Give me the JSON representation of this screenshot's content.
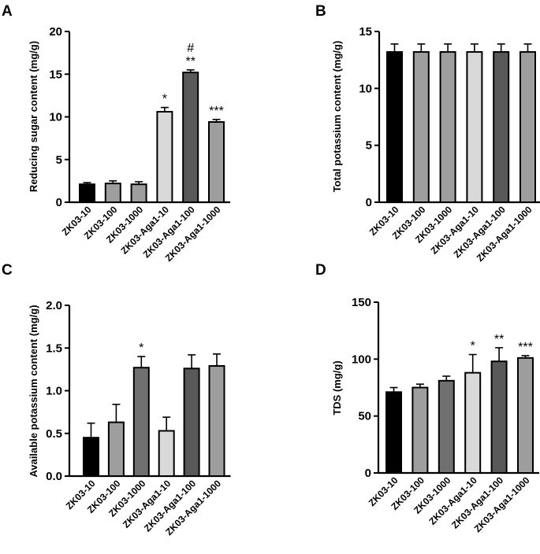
{
  "chart_data": [
    {
      "panel": "A",
      "type": "bar",
      "ylabel": "Reducing sugar content (mg/g)",
      "ylim": [
        0,
        20
      ],
      "yticks": [
        0,
        5,
        10,
        15,
        20
      ],
      "categories": [
        "ZK03-10",
        "ZK03-100",
        "ZK03-1000",
        "ZK03-Aga1-10",
        "ZK03-Aga1-100",
        "ZK03-Aga1-1000"
      ],
      "values": [
        2.1,
        2.2,
        2.1,
        10.6,
        15.2,
        9.4
      ],
      "errors": [
        0.2,
        0.3,
        0.3,
        0.5,
        0.3,
        0.3
      ],
      "colors": [
        "#000000",
        "#9e9e9e",
        "#9e9e9e",
        "#d9d9d9",
        "#595959",
        "#9e9e9e"
      ],
      "annotations": [
        "",
        "",
        "",
        "*",
        "#\n**",
        "***"
      ]
    },
    {
      "panel": "B",
      "type": "bar",
      "ylabel": "Total potassium content (mg/g)",
      "ylim": [
        0,
        15
      ],
      "yticks": [
        0,
        5,
        10,
        15
      ],
      "categories": [
        "ZK03-10",
        "ZK03-100",
        "ZK03-1000",
        "ZK03-Aga1-10",
        "ZK03-Aga1-100",
        "ZK03-Aga1-1000"
      ],
      "values": [
        13.2,
        13.2,
        13.2,
        13.2,
        13.2,
        13.2
      ],
      "errors": [
        0.7,
        0.7,
        0.7,
        0.7,
        0.7,
        0.7
      ],
      "colors": [
        "#000000",
        "#9e9e9e",
        "#9e9e9e",
        "#d9d9d9",
        "#595959",
        "#9e9e9e"
      ],
      "annotations": [
        "",
        "",
        "",
        "",
        "",
        ""
      ]
    },
    {
      "panel": "C",
      "type": "bar",
      "ylabel": "Available potassium content (mg/g)",
      "ylim": [
        0,
        2.0
      ],
      "yticks": [
        "0.0",
        "0.5",
        "1.0",
        "1.5",
        "2.0"
      ],
      "categories": [
        "ZK03-10",
        "ZK03-100",
        "ZK03-1000",
        "ZK03-Aga1-10",
        "ZK03-Aga1-100",
        "ZK03-Aga1-1000"
      ],
      "values": [
        0.45,
        0.63,
        1.27,
        0.53,
        1.26,
        1.29
      ],
      "errors": [
        0.17,
        0.21,
        0.13,
        0.16,
        0.16,
        0.14
      ],
      "colors": [
        "#000000",
        "#9e9e9e",
        "#707070",
        "#d9d9d9",
        "#595959",
        "#9e9e9e"
      ],
      "annotations": [
        "",
        "",
        "*",
        "",
        "",
        ""
      ]
    },
    {
      "panel": "D",
      "type": "bar",
      "ylabel": "TDS (mg/g)",
      "ylim": [
        0,
        150
      ],
      "yticks": [
        0,
        50,
        100,
        150
      ],
      "categories": [
        "ZK03-10",
        "ZK03-100",
        "ZK03-1000",
        "ZK03-Aga1-10",
        "ZK03-Aga1-100",
        "ZK03-Aga1-1000"
      ],
      "values": [
        71,
        75,
        81,
        88,
        98,
        101
      ],
      "errors": [
        4,
        3,
        4,
        16,
        12,
        2
      ],
      "colors": [
        "#000000",
        "#9e9e9e",
        "#707070",
        "#d9d9d9",
        "#595959",
        "#9e9e9e"
      ],
      "annotations": [
        "",
        "",
        "",
        "*",
        "**",
        "***"
      ]
    }
  ]
}
